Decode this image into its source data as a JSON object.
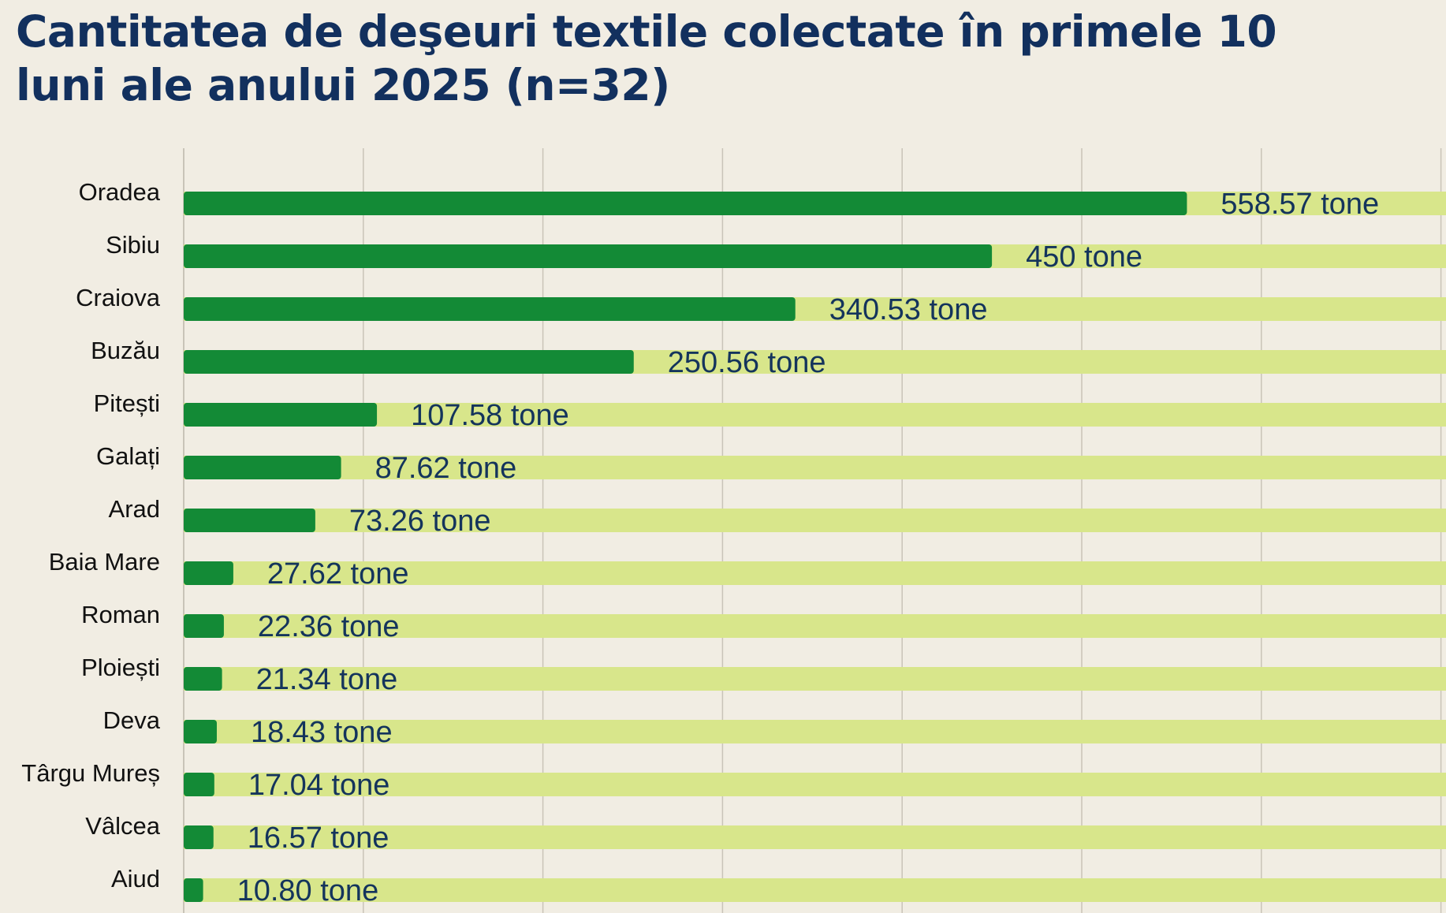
{
  "title": "Cantitatea de deşeuri textile colectate în primele 10 luni ale anului 2025 (n=32)",
  "colors": {
    "background": "#f1ede3",
    "bar": "#138a36",
    "bar_track": "#d8e68b",
    "gridline": "#c9c4b8",
    "title": "#12305e",
    "value_text": "#14345c"
  },
  "chart_data": {
    "type": "bar",
    "orientation": "horizontal",
    "title": "Cantitatea de deşeuri textile colectate în primele 10 luni ale anului 2025 (n=32)",
    "categories": [
      "Oradea",
      "Sibiu",
      "Craiova",
      "Buzău",
      "Pitești",
      "Galați",
      "Arad",
      "Baia Mare",
      "Roman",
      "Ploiești",
      "Deva",
      "Târgu Mureș",
      "Vâlcea",
      "Aiud"
    ],
    "values": [
      558.57,
      450,
      340.53,
      250.56,
      107.58,
      87.62,
      73.26,
      27.62,
      22.36,
      21.34,
      18.43,
      17.04,
      16.57,
      10.8
    ],
    "value_labels": [
      "558.57 tone",
      "450 tone",
      "340.53 tone",
      "250.56 tone",
      "107.58 tone",
      "87.62 tone",
      "73.26 tone",
      "27.62 tone",
      "22.36 tone",
      "21.34 tone",
      "18.43 tone",
      "17.04 tone",
      "16.57 tone",
      "10.80 tone"
    ],
    "unit": "tone",
    "xlim": [
      0,
      700
    ],
    "grid": true,
    "xlabel": "",
    "ylabel": ""
  }
}
